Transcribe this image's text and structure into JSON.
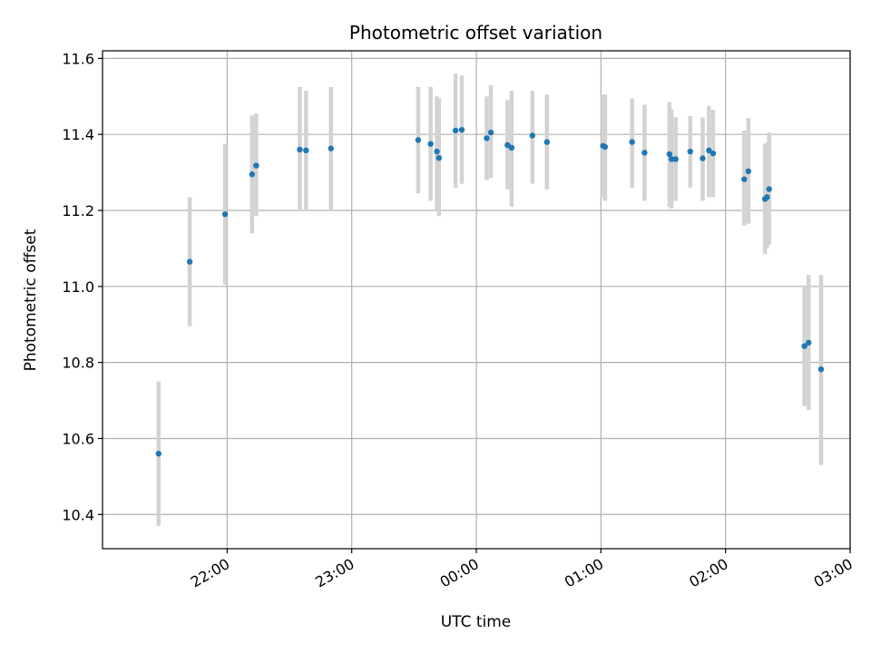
{
  "chart_data": {
    "type": "scatter",
    "title": "Photometric offset variation",
    "xlabel": "UTC time",
    "ylabel": "Photometric offset",
    "grid": true,
    "xlim_hours": [
      21.0,
      27.0
    ],
    "ylim": [
      10.31,
      11.62
    ],
    "x_ticks": [
      {
        "label": "22:00",
        "hours": 22
      },
      {
        "label": "23:00",
        "hours": 23
      },
      {
        "label": "00:00",
        "hours": 24
      },
      {
        "label": "01:00",
        "hours": 25
      },
      {
        "label": "02:00",
        "hours": 26
      },
      {
        "label": "03:00",
        "hours": 27
      }
    ],
    "y_ticks": [
      "10.4",
      "10.6",
      "10.8",
      "11.0",
      "11.2",
      "11.4",
      "11.6"
    ],
    "colors": {
      "point": "#1f77b4",
      "errorbar": "#d3d3d3",
      "grid": "#b0b0b0"
    },
    "points": [
      {
        "x": "21:27",
        "y": 10.56,
        "lo": 10.37,
        "hi": 10.75
      },
      {
        "x": "21:42",
        "y": 11.065,
        "lo": 10.895,
        "hi": 11.235
      },
      {
        "x": "21:59",
        "y": 11.19,
        "lo": 11.005,
        "hi": 11.375
      },
      {
        "x": "22:12",
        "y": 11.295,
        "lo": 11.14,
        "hi": 11.45
      },
      {
        "x": "22:14",
        "y": 11.318,
        "lo": 11.185,
        "hi": 11.455
      },
      {
        "x": "22:35",
        "y": 11.36,
        "lo": 11.2,
        "hi": 11.525
      },
      {
        "x": "22:38",
        "y": 11.358,
        "lo": 11.2,
        "hi": 11.515
      },
      {
        "x": "22:50",
        "y": 11.363,
        "lo": 11.2,
        "hi": 11.525
      },
      {
        "x": "23:32",
        "y": 11.385,
        "lo": 11.245,
        "hi": 11.525
      },
      {
        "x": "23:38",
        "y": 11.375,
        "lo": 11.225,
        "hi": 11.525
      },
      {
        "x": "23:41",
        "y": 11.355,
        "lo": 11.2,
        "hi": 11.5
      },
      {
        "x": "23:42",
        "y": 11.338,
        "lo": 11.185,
        "hi": 11.495
      },
      {
        "x": "23:50",
        "y": 11.41,
        "lo": 11.26,
        "hi": 11.56
      },
      {
        "x": "23:53",
        "y": 11.412,
        "lo": 11.27,
        "hi": 11.555
      },
      {
        "x": "00:05",
        "y": 11.39,
        "lo": 11.28,
        "hi": 11.5
      },
      {
        "x": "00:07",
        "y": 11.405,
        "lo": 11.285,
        "hi": 11.53
      },
      {
        "x": "00:15",
        "y": 11.372,
        "lo": 11.255,
        "hi": 11.49
      },
      {
        "x": "00:17",
        "y": 11.365,
        "lo": 11.21,
        "hi": 11.515
      },
      {
        "x": "00:27",
        "y": 11.397,
        "lo": 11.27,
        "hi": 11.515
      },
      {
        "x": "00:34",
        "y": 11.38,
        "lo": 11.255,
        "hi": 11.505
      },
      {
        "x": "01:01",
        "y": 11.37,
        "lo": 11.235,
        "hi": 11.505
      },
      {
        "x": "01:02",
        "y": 11.367,
        "lo": 11.225,
        "hi": 11.505
      },
      {
        "x": "01:15",
        "y": 11.38,
        "lo": 11.26,
        "hi": 11.495
      },
      {
        "x": "01:21",
        "y": 11.352,
        "lo": 11.225,
        "hi": 11.478
      },
      {
        "x": "01:33",
        "y": 11.348,
        "lo": 11.21,
        "hi": 11.485
      },
      {
        "x": "01:34",
        "y": 11.335,
        "lo": 11.205,
        "hi": 11.465
      },
      {
        "x": "01:36",
        "y": 11.335,
        "lo": 11.225,
        "hi": 11.445
      },
      {
        "x": "01:43",
        "y": 11.355,
        "lo": 11.26,
        "hi": 11.448
      },
      {
        "x": "01:49",
        "y": 11.337,
        "lo": 11.225,
        "hi": 11.445
      },
      {
        "x": "01:52",
        "y": 11.358,
        "lo": 11.235,
        "hi": 11.475
      },
      {
        "x": "01:54",
        "y": 11.35,
        "lo": 11.235,
        "hi": 11.465
      },
      {
        "x": "02:09",
        "y": 11.282,
        "lo": 11.16,
        "hi": 11.41
      },
      {
        "x": "02:11",
        "y": 11.303,
        "lo": 11.165,
        "hi": 11.443
      },
      {
        "x": "02:19",
        "y": 11.23,
        "lo": 11.085,
        "hi": 11.375
      },
      {
        "x": "02:20",
        "y": 11.235,
        "lo": 11.1,
        "hi": 11.378
      },
      {
        "x": "02:21",
        "y": 11.256,
        "lo": 11.11,
        "hi": 11.405
      },
      {
        "x": "02:38",
        "y": 10.843,
        "lo": 10.685,
        "hi": 11.0
      },
      {
        "x": "02:40",
        "y": 10.852,
        "lo": 10.675,
        "hi": 11.03
      },
      {
        "x": "02:46",
        "y": 10.782,
        "lo": 10.53,
        "hi": 11.03
      }
    ]
  }
}
